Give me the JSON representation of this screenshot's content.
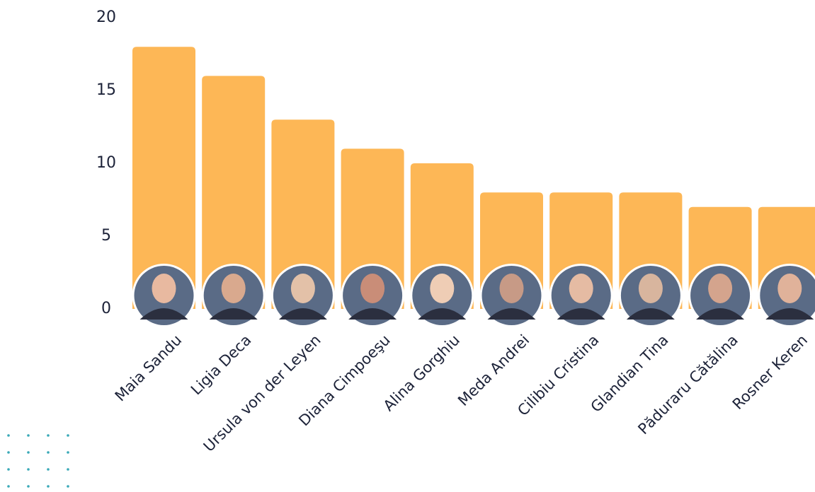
{
  "chart_data": {
    "type": "bar",
    "categories": [
      "Maia Sandu",
      "Ligia Deca",
      "Ursula von der Leyen",
      "Diana Cimpoeşu",
      "Alina Gorghiu",
      "Meda Andrei",
      "Cilibiu Cristina",
      "Glandian Tina",
      "Păduraru Cătălina",
      "Rosner Keren"
    ],
    "values": [
      18,
      16,
      13,
      11,
      10,
      8,
      8,
      8,
      7,
      7
    ],
    "color": "#fdb756",
    "ylim": [
      0,
      20
    ],
    "yticks": [
      0,
      5,
      10,
      15,
      20
    ],
    "grid": false
  }
}
